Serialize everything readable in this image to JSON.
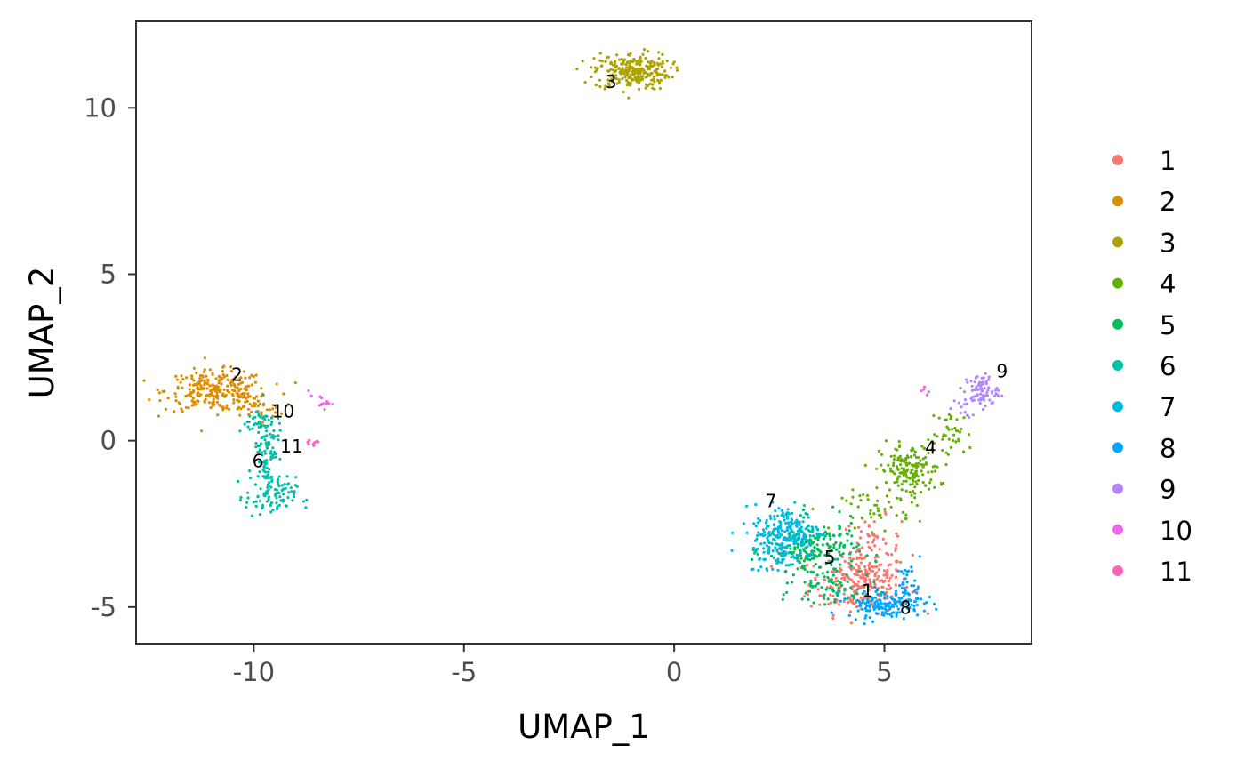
{
  "chart_data": {
    "type": "scatter",
    "title": "",
    "xlabel": "UMAP_1",
    "ylabel": "UMAP_2",
    "xlim": [
      -12.8,
      8.5
    ],
    "ylim": [
      -6.1,
      12.6
    ],
    "xticks": [
      -10,
      -5,
      0,
      5
    ],
    "yticks": [
      -5,
      0,
      5,
      10
    ],
    "xtick_labels": [
      "-10",
      "-5",
      "0",
      "5"
    ],
    "ytick_labels": [
      "-5",
      "0",
      "5",
      "10"
    ],
    "grid": false,
    "legend_position": "right",
    "series": [
      {
        "name": "1",
        "color": "#F8766D",
        "label": {
          "x": 4.6,
          "y": -4.7
        },
        "regions": [
          {
            "cx": 4.4,
            "cy": -4.3,
            "sx": 0.6,
            "sy": 0.45,
            "n": 220
          },
          {
            "cx": 4.7,
            "cy": -3.3,
            "sx": 0.35,
            "sy": 0.5,
            "n": 80
          }
        ]
      },
      {
        "name": "2",
        "color": "#DB8E00",
        "label": {
          "x": -10.4,
          "y": 1.8
        },
        "regions": [
          {
            "cx": -10.9,
            "cy": 1.5,
            "sx": 0.6,
            "sy": 0.3,
            "n": 260
          },
          {
            "cx": -10.0,
            "cy": 1.0,
            "sx": 0.35,
            "sy": 0.2,
            "n": 40
          }
        ]
      },
      {
        "name": "3",
        "color": "#AEA200",
        "label": {
          "x": -1.5,
          "y": 10.6
        },
        "regions": [
          {
            "cx": -1.0,
            "cy": 11.1,
            "sx": 0.45,
            "sy": 0.28,
            "n": 260
          }
        ]
      },
      {
        "name": "4",
        "color": "#64B200",
        "label": {
          "x": 6.1,
          "y": -0.4
        },
        "regions": [
          {
            "cx": 5.6,
            "cy": -0.9,
            "sx": 0.35,
            "sy": 0.4,
            "n": 160
          },
          {
            "cx": 6.6,
            "cy": 0.2,
            "sx": 0.25,
            "sy": 0.35,
            "n": 40
          },
          {
            "cx": 4.8,
            "cy": -2.1,
            "sx": 0.4,
            "sy": 0.3,
            "n": 40
          }
        ]
      },
      {
        "name": "5",
        "color": "#00BD5C",
        "label": {
          "x": 3.7,
          "y": -3.7
        },
        "regions": [
          {
            "cx": 3.3,
            "cy": -3.3,
            "sx": 0.55,
            "sy": 0.45,
            "n": 220
          },
          {
            "cx": 3.8,
            "cy": -4.5,
            "sx": 0.5,
            "sy": 0.3,
            "n": 60
          }
        ]
      },
      {
        "name": "6",
        "color": "#00C1A7",
        "label": {
          "x": -9.9,
          "y": -0.8
        },
        "regions": [
          {
            "cx": -9.7,
            "cy": -0.2,
            "sx": 0.15,
            "sy": 0.6,
            "n": 110
          },
          {
            "cx": -9.6,
            "cy": -1.7,
            "sx": 0.3,
            "sy": 0.3,
            "n": 90
          },
          {
            "cx": -10.0,
            "cy": 0.5,
            "sx": 0.2,
            "sy": 0.15,
            "n": 20
          }
        ]
      },
      {
        "name": "7",
        "color": "#00BADE",
        "label": {
          "x": 2.3,
          "y": -2.0
        },
        "regions": [
          {
            "cx": 2.7,
            "cy": -2.7,
            "sx": 0.4,
            "sy": 0.4,
            "n": 190
          },
          {
            "cx": 2.4,
            "cy": -3.4,
            "sx": 0.3,
            "sy": 0.3,
            "n": 50
          }
        ]
      },
      {
        "name": "8",
        "color": "#00A6FF",
        "label": {
          "x": 5.5,
          "y": -5.2
        },
        "regions": [
          {
            "cx": 5.0,
            "cy": -4.9,
            "sx": 0.45,
            "sy": 0.2,
            "n": 150
          },
          {
            "cx": 5.6,
            "cy": -4.3,
            "sx": 0.15,
            "sy": 0.3,
            "n": 30
          }
        ]
      },
      {
        "name": "9",
        "color": "#B385FF",
        "label": {
          "x": 7.8,
          "y": 1.9
        },
        "regions": [
          {
            "cx": 7.3,
            "cy": 1.5,
            "sx": 0.2,
            "sy": 0.25,
            "n": 80
          },
          {
            "cx": 6.8,
            "cy": 0.9,
            "sx": 0.15,
            "sy": 0.2,
            "n": 10
          }
        ]
      },
      {
        "name": "10",
        "color": "#EF67EB",
        "label": {
          "x": -9.3,
          "y": 0.7
        },
        "regions": [
          {
            "cx": -8.4,
            "cy": 1.15,
            "sx": 0.15,
            "sy": 0.1,
            "n": 14
          },
          {
            "cx": 6.0,
            "cy": 1.5,
            "sx": 0.08,
            "sy": 0.05,
            "n": 5
          }
        ]
      },
      {
        "name": "11",
        "color": "#FF63B6",
        "label": {
          "x": -9.1,
          "y": -0.35
        },
        "regions": [
          {
            "cx": -8.55,
            "cy": -0.05,
            "sx": 0.08,
            "sy": 0.06,
            "n": 8
          }
        ]
      }
    ]
  }
}
